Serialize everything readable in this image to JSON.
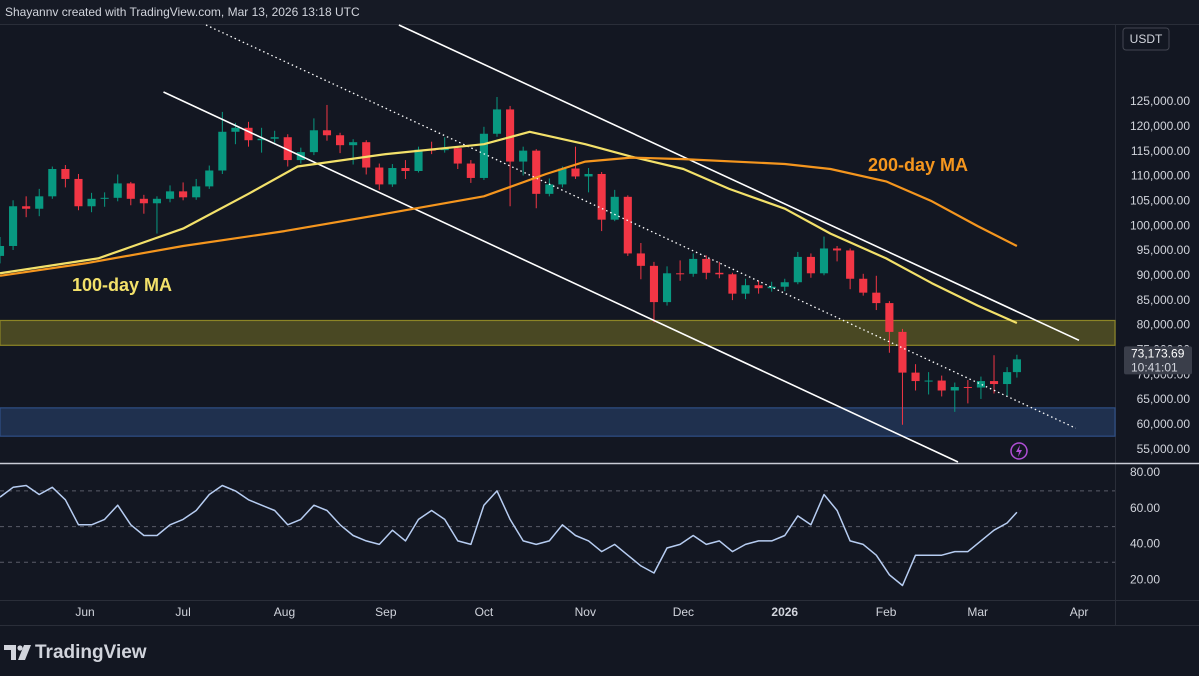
{
  "header": "Shayannv created with TradingView.com, Mar 13, 2026 13:18 UTC",
  "brand": "TradingView",
  "chart_data": [
    {
      "type": "candlestick",
      "currency": "USDT",
      "up_color": "#089981",
      "down_color": "#f23645",
      "xlim": [
        "2025-05-06",
        "2026-04-12"
      ],
      "xticks": [
        {
          "value": "2025-06-01",
          "label": "Jun"
        },
        {
          "value": "2025-07-01",
          "label": "Jul"
        },
        {
          "value": "2025-08-01",
          "label": "Aug"
        },
        {
          "value": "2025-09-01",
          "label": "Sep"
        },
        {
          "value": "2025-10-01",
          "label": "Oct"
        },
        {
          "value": "2025-11-01",
          "label": "Nov"
        },
        {
          "value": "2025-12-01",
          "label": "Dec"
        },
        {
          "value": "2026-01-01",
          "label": "2026"
        },
        {
          "value": "2026-02-01",
          "label": "Feb"
        },
        {
          "value": "2026-03-01",
          "label": "Mar"
        },
        {
          "value": "2026-04-01",
          "label": "Apr"
        }
      ],
      "ylim": [
        52500,
        140500
      ],
      "yticks": [
        {
          "value": 55000,
          "label": "55,000.00"
        },
        {
          "value": 60000,
          "label": "60,000.00"
        },
        {
          "value": 65000,
          "label": "65,000.00"
        },
        {
          "value": 70000,
          "label": "70,000.00"
        },
        {
          "value": 75000,
          "label": "75,000.00"
        },
        {
          "value": 80000,
          "label": "80,000.00"
        },
        {
          "value": 85000,
          "label": "85,000.00"
        },
        {
          "value": 90000,
          "label": "90,000.00"
        },
        {
          "value": 95000,
          "label": "95,000.00"
        },
        {
          "value": 100000,
          "label": "100,000.00"
        },
        {
          "value": 105000,
          "label": "105,000.00"
        },
        {
          "value": 110000,
          "label": "110,000.00"
        },
        {
          "value": 115000,
          "label": "115,000.00"
        },
        {
          "value": 120000,
          "label": "120,000.00"
        },
        {
          "value": 125000,
          "label": "125,000.00"
        }
      ],
      "grid": false,
      "x": [
        "2025-05-06",
        "2025-05-10",
        "2025-05-14",
        "2025-05-18",
        "2025-05-22",
        "2025-05-26",
        "2025-05-30",
        "2025-06-03",
        "2025-06-07",
        "2025-06-11",
        "2025-06-15",
        "2025-06-19",
        "2025-06-23",
        "2025-06-27",
        "2025-07-01",
        "2025-07-05",
        "2025-07-09",
        "2025-07-13",
        "2025-07-17",
        "2025-07-21",
        "2025-07-25",
        "2025-07-29",
        "2025-08-02",
        "2025-08-06",
        "2025-08-10",
        "2025-08-14",
        "2025-08-18",
        "2025-08-22",
        "2025-08-26",
        "2025-08-30",
        "2025-09-03",
        "2025-09-07",
        "2025-09-11",
        "2025-09-15",
        "2025-09-19",
        "2025-09-23",
        "2025-09-27",
        "2025-10-01",
        "2025-10-05",
        "2025-10-09",
        "2025-10-13",
        "2025-10-17",
        "2025-10-21",
        "2025-10-25",
        "2025-10-29",
        "2025-11-02",
        "2025-11-06",
        "2025-11-10",
        "2025-11-14",
        "2025-11-18",
        "2025-11-22",
        "2025-11-26",
        "2025-11-30",
        "2025-12-04",
        "2025-12-08",
        "2025-12-12",
        "2025-12-16",
        "2025-12-20",
        "2025-12-24",
        "2025-12-28",
        "2026-01-01",
        "2026-01-05",
        "2026-01-09",
        "2026-01-13",
        "2026-01-17",
        "2026-01-21",
        "2026-01-25",
        "2026-01-29",
        "2026-02-02",
        "2026-02-06",
        "2026-02-10",
        "2026-02-14",
        "2026-02-18",
        "2026-02-22",
        "2026-02-26",
        "2026-03-02",
        "2026-03-06",
        "2026-03-10",
        "2026-03-13"
      ],
      "open": [
        94000,
        96000,
        104000,
        103500,
        106000,
        111500,
        109500,
        104000,
        105500,
        105700,
        108600,
        105500,
        104600,
        105500,
        107000,
        105800,
        108000,
        111200,
        119000,
        119800,
        117300,
        117600,
        117900,
        113300,
        114900,
        119300,
        118300,
        116300,
        116900,
        111800,
        108400,
        111700,
        111100,
        115400,
        115300,
        115700,
        112600,
        109700,
        118600,
        123500,
        113000,
        115200,
        106500,
        108400,
        111600,
        110000,
        110500,
        101300,
        105900,
        94500,
        92000,
        84700,
        90500,
        90400,
        93400,
        90600,
        90300,
        86400,
        88100,
        87500,
        87800,
        88700,
        93800,
        90500,
        95500,
        95100,
        89400,
        86600,
        84500,
        78700,
        70500,
        68800,
        68900,
        66900,
        67600,
        67500,
        68800,
        68200,
        70600
      ],
      "high": [
        97800,
        105200,
        106000,
        107500,
        112000,
        112300,
        110500,
        106700,
        106800,
        110400,
        108900,
        106300,
        106000,
        108200,
        108800,
        109500,
        112200,
        123000,
        120800,
        121000,
        119800,
        119200,
        118500,
        115800,
        121700,
        124400,
        118800,
        117500,
        117300,
        112600,
        112500,
        113300,
        116000,
        117000,
        117900,
        116000,
        113300,
        120000,
        126000,
        124200,
        116000,
        115500,
        109600,
        112000,
        116000,
        111700,
        110900,
        107300,
        106200,
        96600,
        92800,
        91900,
        93100,
        94500,
        94100,
        92800,
        90600,
        89400,
        89000,
        88800,
        89400,
        94800,
        94500,
        97900,
        96000,
        95500,
        90400,
        90000,
        84900,
        79300,
        72200,
        70600,
        69900,
        68500,
        69000,
        69700,
        74000,
        71600,
        74100
      ],
      "low": [
        92500,
        95200,
        101800,
        102000,
        105500,
        107800,
        103200,
        102800,
        103900,
        105000,
        104200,
        102500,
        98500,
        104800,
        105200,
        105300,
        107500,
        110500,
        116500,
        116000,
        114800,
        116800,
        112000,
        112600,
        114300,
        117200,
        114700,
        112400,
        110400,
        107300,
        107900,
        109500,
        110800,
        114500,
        114800,
        111500,
        108700,
        109300,
        118000,
        104000,
        110200,
        103600,
        106000,
        107800,
        109500,
        106800,
        99000,
        101000,
        94000,
        89300,
        80600,
        84000,
        89000,
        89800,
        89300,
        89500,
        85100,
        85300,
        86400,
        86800,
        86900,
        88300,
        89600,
        90100,
        92900,
        87300,
        86000,
        83100,
        74500,
        60000,
        66900,
        66100,
        65700,
        62600,
        64300,
        65200,
        66300,
        65800,
        69500
      ],
      "close": [
        96000,
        104000,
        103500,
        106000,
        111500,
        109500,
        104000,
        105500,
        105700,
        108600,
        105500,
        104600,
        105500,
        107000,
        105800,
        108000,
        111200,
        119000,
        119800,
        117300,
        117600,
        117900,
        113300,
        114900,
        119300,
        118300,
        116300,
        116900,
        111800,
        108400,
        111700,
        111100,
        115400,
        115300,
        115700,
        112600,
        109700,
        118600,
        123500,
        113000,
        115200,
        106500,
        108400,
        111600,
        110000,
        110500,
        101300,
        105900,
        94500,
        92000,
        84700,
        90500,
        90400,
        93400,
        90600,
        90300,
        86400,
        88100,
        87500,
        87800,
        88700,
        93800,
        90500,
        95500,
        95100,
        89400,
        86600,
        84500,
        78700,
        70500,
        68800,
        68900,
        66900,
        67600,
        67500,
        68800,
        68200,
        70600,
        73173.69
      ],
      "price_tag": {
        "label": "73,173.69",
        "countdown": "10:41:01"
      },
      "series": [
        {
          "name": "100-day MA",
          "color": "#f3e16a",
          "x": [
            "2025-05-06",
            "2025-06-05",
            "2025-07-01",
            "2025-07-21",
            "2025-08-05",
            "2025-09-01",
            "2025-10-01",
            "2025-10-15",
            "2025-11-01",
            "2025-11-15",
            "2025-12-01",
            "2025-12-15",
            "2026-01-01",
            "2026-01-15",
            "2026-02-01",
            "2026-02-15",
            "2026-03-01",
            "2026-03-13"
          ],
          "values": [
            90500,
            93500,
            99500,
            106500,
            112000,
            114500,
            116500,
            119000,
            116500,
            114000,
            111500,
            107500,
            103500,
            98500,
            93500,
            88500,
            84000,
            80500
          ]
        },
        {
          "name": "200-day MA",
          "color": "#f5961e",
          "x": [
            "2025-05-06",
            "2025-06-01",
            "2025-07-01",
            "2025-08-01",
            "2025-09-01",
            "2025-10-01",
            "2025-10-20",
            "2025-11-01",
            "2025-11-15",
            "2025-12-01",
            "2026-01-01",
            "2026-01-15",
            "2026-02-01",
            "2026-02-15",
            "2026-03-01",
            "2026-03-13"
          ],
          "values": [
            90000,
            92500,
            96000,
            99000,
            102500,
            106000,
            110500,
            113000,
            113800,
            113500,
            112500,
            111500,
            109000,
            105000,
            100000,
            96000
          ]
        }
      ],
      "zones": [
        {
          "from": 76000,
          "to": 81000,
          "color": "#8c8526"
        },
        {
          "from": 57700,
          "to": 63400,
          "color": "#2f4f86"
        }
      ],
      "trendlines": [
        {
          "x": [
            "2025-09-05",
            "2026-04-01"
          ],
          "y": [
            140500,
            77000
          ],
          "style": "solid"
        },
        {
          "x": [
            "2025-06-25",
            "2026-02-23"
          ],
          "y": [
            127000,
            52500
          ],
          "style": "solid"
        },
        {
          "x": [
            "2025-07-08",
            "2026-03-31"
          ],
          "y": [
            140500,
            59300
          ],
          "style": "dotted"
        }
      ]
    },
    {
      "type": "line",
      "xlim": [
        "2025-05-06",
        "2026-04-12"
      ],
      "ylim": [
        10,
        84.5
      ],
      "yticks": [
        {
          "value": 20,
          "label": "20.00"
        },
        {
          "value": 40,
          "label": "40.00"
        },
        {
          "value": 60,
          "label": "60.00"
        },
        {
          "value": 80,
          "label": "80.00"
        }
      ],
      "levels": [
        70,
        50,
        30
      ],
      "color": "#b7cdf2",
      "x": [
        "2025-05-06",
        "2025-05-10",
        "2025-05-14",
        "2025-05-18",
        "2025-05-22",
        "2025-05-26",
        "2025-05-30",
        "2025-06-03",
        "2025-06-07",
        "2025-06-11",
        "2025-06-15",
        "2025-06-19",
        "2025-06-23",
        "2025-06-27",
        "2025-07-01",
        "2025-07-05",
        "2025-07-09",
        "2025-07-13",
        "2025-07-17",
        "2025-07-21",
        "2025-07-25",
        "2025-07-29",
        "2025-08-02",
        "2025-08-06",
        "2025-08-10",
        "2025-08-14",
        "2025-08-18",
        "2025-08-22",
        "2025-08-26",
        "2025-08-30",
        "2025-09-03",
        "2025-09-07",
        "2025-09-11",
        "2025-09-15",
        "2025-09-19",
        "2025-09-23",
        "2025-09-27",
        "2025-10-01",
        "2025-10-05",
        "2025-10-09",
        "2025-10-13",
        "2025-10-17",
        "2025-10-21",
        "2025-10-25",
        "2025-10-29",
        "2025-11-02",
        "2025-11-06",
        "2025-11-10",
        "2025-11-14",
        "2025-11-18",
        "2025-11-22",
        "2025-11-26",
        "2025-11-30",
        "2025-12-04",
        "2025-12-08",
        "2025-12-12",
        "2025-12-16",
        "2025-12-20",
        "2025-12-24",
        "2025-12-28",
        "2026-01-01",
        "2026-01-05",
        "2026-01-09",
        "2026-01-13",
        "2026-01-17",
        "2026-01-21",
        "2026-01-25",
        "2026-01-29",
        "2026-02-02",
        "2026-02-06",
        "2026-02-10",
        "2026-02-14",
        "2026-02-18",
        "2026-02-22",
        "2026-02-26",
        "2026-03-02",
        "2026-03-06",
        "2026-03-10",
        "2026-03-13"
      ],
      "values": [
        66.5,
        72,
        73,
        68,
        72,
        65,
        51,
        51,
        54,
        62,
        51,
        45,
        45,
        51,
        54,
        59,
        68,
        73,
        70,
        65,
        62,
        59,
        51,
        54,
        62,
        59,
        51,
        45,
        42,
        40,
        48,
        42,
        54,
        59,
        54,
        42,
        40,
        62,
        70,
        54,
        42,
        40,
        42,
        51,
        45,
        42,
        36,
        40,
        34,
        28,
        24,
        38,
        40,
        45,
        40,
        42,
        36,
        40,
        42,
        42,
        45,
        56,
        51,
        68,
        59,
        42,
        40,
        34,
        23,
        17,
        34,
        34,
        34,
        36,
        36,
        42,
        48,
        52,
        58
      ]
    }
  ]
}
